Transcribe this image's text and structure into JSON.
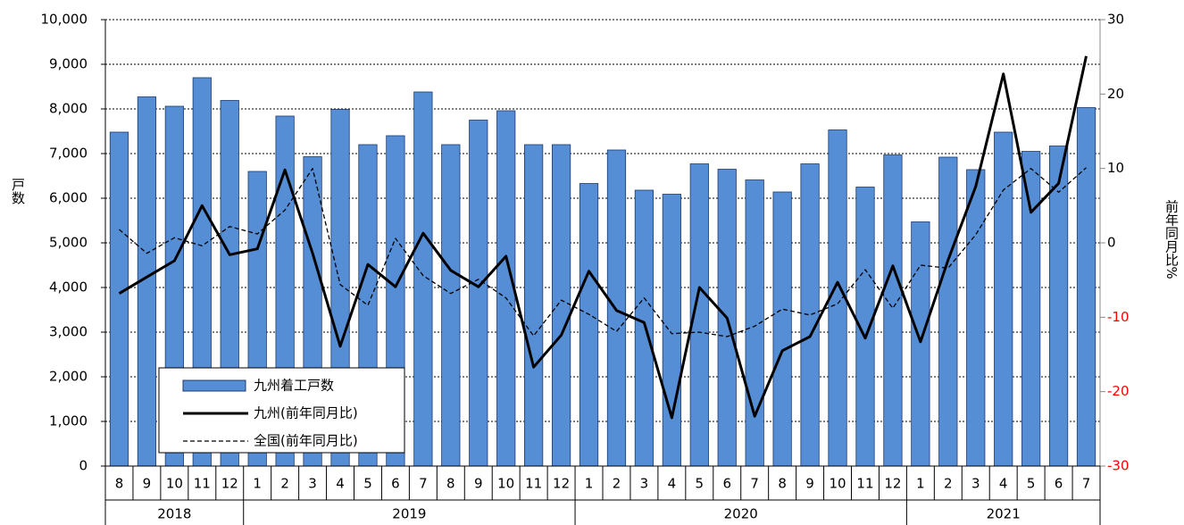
{
  "chart_data": {
    "type": "bar",
    "groups": [
      {
        "name": "2018",
        "categories": [
          "8",
          "9",
          "10",
          "11",
          "12"
        ]
      },
      {
        "name": "2019",
        "categories": [
          "1",
          "2",
          "3",
          "4",
          "5",
          "6",
          "7",
          "8",
          "9",
          "10",
          "11",
          "12"
        ]
      },
      {
        "name": "2020",
        "categories": [
          "1",
          "2",
          "3",
          "4",
          "5",
          "6",
          "7",
          "8",
          "9",
          "10",
          "11",
          "12"
        ]
      },
      {
        "name": "2021",
        "categories": [
          "1",
          "2",
          "3",
          "4",
          "5",
          "6",
          "7"
        ]
      }
    ],
    "y_label": "戸数",
    "y2_label": "前年同月比%",
    "ylim": [
      0,
      10000
    ],
    "yticks": [
      0,
      {
        "value": 1000,
        "label": "1,000"
      },
      {
        "value": 2000,
        "label": "2,000"
      },
      {
        "value": 3000,
        "label": "3,000"
      },
      {
        "value": 4000,
        "label": "4,000"
      },
      {
        "value": 5000,
        "label": "5,000"
      },
      {
        "value": 6000,
        "label": "6,000"
      },
      {
        "value": 7000,
        "label": "7,000"
      },
      {
        "value": 8000,
        "label": "8,000"
      },
      {
        "value": 9000,
        "label": "9,000"
      },
      {
        "value": 10000,
        "label": "10,000"
      }
    ],
    "y2lim": [
      -30,
      30
    ],
    "y2ticks": [
      -30,
      -20,
      -10,
      0,
      10,
      20,
      30
    ],
    "negative_tick_color": "#ff0000",
    "grid": true,
    "series": [
      {
        "name": "九州着工戸数",
        "type": "bar",
        "color": "#558ed5",
        "values": [
          7480,
          8270,
          8060,
          8700,
          8190,
          6600,
          7840,
          6930,
          7990,
          7200,
          7400,
          8380,
          7200,
          7750,
          7960,
          7200,
          7200,
          6330,
          7080,
          6180,
          6090,
          6770,
          6650,
          6410,
          6140,
          6770,
          7530,
          6250,
          6970,
          5470,
          6920,
          6640,
          7480,
          7050,
          7170,
          8030
        ]
      },
      {
        "name": "九州(前年同月比)",
        "type": "line",
        "axis": "y2",
        "color": "#000000",
        "dash": false,
        "values": [
          -6.8,
          -4.6,
          -2.4,
          5.0,
          -1.6,
          -0.8,
          9.8,
          -1.4,
          -13.9,
          -2.9,
          -5.9,
          1.3,
          -3.7,
          -5.9,
          -1.8,
          -16.7,
          -12.4,
          -3.8,
          -9.1,
          -10.7,
          -23.5,
          -6.0,
          -10.1,
          -23.3,
          -14.5,
          -12.6,
          -5.3,
          -12.8,
          -3.1,
          -13.3,
          -2.3,
          7.6,
          22.7,
          4.1,
          8.0,
          25.1
        ]
      },
      {
        "name": "全国(前年同月比)",
        "type": "line",
        "axis": "y2",
        "color": "#000000",
        "dash": true,
        "values": [
          1.8,
          -1.4,
          0.7,
          -0.4,
          2.2,
          1.2,
          4.4,
          10.0,
          -5.6,
          -8.4,
          0.6,
          -4.4,
          -6.8,
          -4.9,
          -7.4,
          -12.5,
          -7.7,
          -9.6,
          -11.9,
          -7.4,
          -12.2,
          -12.0,
          -12.6,
          -11.2,
          -8.9,
          -9.7,
          -8.2,
          -3.6,
          -8.8,
          -3.0,
          -3.4,
          1.1,
          7.1,
          10.0,
          6.8,
          10.1
        ]
      }
    ]
  }
}
